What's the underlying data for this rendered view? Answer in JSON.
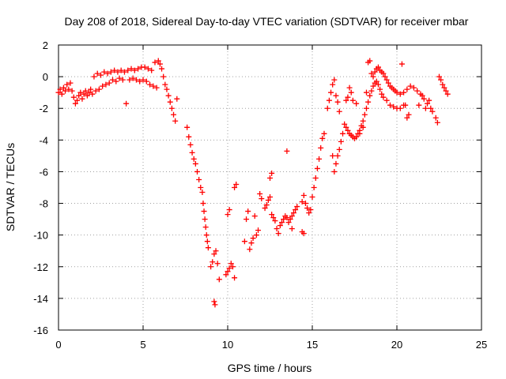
{
  "chart_data": {
    "type": "scatter",
    "title": "Day 208 of 2018, Sidereal Day-to-day VTEC variation (SDTVAR) for receiver mbar",
    "xlabel": "GPS time / hours",
    "ylabel": "SDTVAR / TECUs",
    "xlim": [
      0,
      25
    ],
    "ylim": [
      -16,
      2
    ],
    "xticks": [
      0,
      5,
      10,
      15,
      20,
      25
    ],
    "yticks": [
      -16,
      -14,
      -12,
      -10,
      -8,
      -6,
      -4,
      -2,
      0,
      2
    ],
    "grid": true,
    "marker": "+",
    "color": "#ff0000",
    "series": [
      {
        "name": "SDTVAR",
        "points": [
          [
            0.0,
            -1.0
          ],
          [
            0.1,
            -0.8
          ],
          [
            0.2,
            -1.1
          ],
          [
            0.3,
            -0.7
          ],
          [
            0.4,
            -0.9
          ],
          [
            0.5,
            -0.5
          ],
          [
            0.6,
            -0.8
          ],
          [
            0.7,
            -0.4
          ],
          [
            0.8,
            -0.9
          ],
          [
            0.9,
            -1.3
          ],
          [
            1.0,
            -1.7
          ],
          [
            1.1,
            -1.5
          ],
          [
            1.2,
            -1.2
          ],
          [
            1.3,
            -1.0
          ],
          [
            1.4,
            -1.4
          ],
          [
            1.5,
            -1.1
          ],
          [
            1.6,
            -0.9
          ],
          [
            1.7,
            -1.2
          ],
          [
            1.8,
            -1.0
          ],
          [
            1.9,
            -0.8
          ],
          [
            2.0,
            -1.1
          ],
          [
            2.2,
            -0.9
          ],
          [
            2.4,
            -0.8
          ],
          [
            2.6,
            -0.6
          ],
          [
            2.8,
            -0.5
          ],
          [
            3.0,
            -0.4
          ],
          [
            3.2,
            -0.2
          ],
          [
            3.4,
            -0.3
          ],
          [
            3.6,
            -0.1
          ],
          [
            3.8,
            -0.2
          ],
          [
            2.1,
            0.0
          ],
          [
            2.3,
            0.2
          ],
          [
            2.5,
            0.1
          ],
          [
            2.7,
            0.3
          ],
          [
            2.9,
            0.2
          ],
          [
            3.1,
            0.3
          ],
          [
            3.3,
            0.4
          ],
          [
            3.5,
            0.3
          ],
          [
            3.7,
            0.4
          ],
          [
            3.9,
            0.3
          ],
          [
            4.1,
            0.4
          ],
          [
            4.3,
            0.5
          ],
          [
            4.5,
            0.4
          ],
          [
            4.7,
            0.5
          ],
          [
            4.9,
            0.6
          ],
          [
            5.1,
            0.6
          ],
          [
            5.3,
            0.5
          ],
          [
            5.5,
            0.4
          ],
          [
            4.0,
            -1.7
          ],
          [
            4.2,
            -0.2
          ],
          [
            4.4,
            -0.1
          ],
          [
            4.6,
            -0.2
          ],
          [
            4.8,
            -0.3
          ],
          [
            5.0,
            -0.2
          ],
          [
            5.2,
            -0.3
          ],
          [
            5.4,
            -0.5
          ],
          [
            5.6,
            -0.6
          ],
          [
            5.8,
            -0.7
          ],
          [
            5.7,
            0.9
          ],
          [
            5.9,
            1.0
          ],
          [
            6.0,
            0.8
          ],
          [
            6.1,
            0.5
          ],
          [
            6.2,
            0.0
          ],
          [
            6.3,
            -0.5
          ],
          [
            6.4,
            -0.8
          ],
          [
            6.5,
            -1.2
          ],
          [
            6.6,
            -1.6
          ],
          [
            6.7,
            -2.0
          ],
          [
            6.8,
            -2.4
          ],
          [
            6.9,
            -2.8
          ],
          [
            7.0,
            -1.4
          ],
          [
            7.6,
            -3.2
          ],
          [
            7.7,
            -3.8
          ],
          [
            7.8,
            -4.3
          ],
          [
            7.9,
            -4.8
          ],
          [
            8.0,
            -5.2
          ],
          [
            8.1,
            -5.5
          ],
          [
            8.2,
            -6.0
          ],
          [
            8.3,
            -6.5
          ],
          [
            8.4,
            -7.0
          ],
          [
            8.5,
            -7.3
          ],
          [
            8.55,
            -8.0
          ],
          [
            8.6,
            -8.5
          ],
          [
            8.65,
            -9.0
          ],
          [
            8.7,
            -9.5
          ],
          [
            8.75,
            -10.0
          ],
          [
            8.8,
            -10.4
          ],
          [
            8.85,
            -10.8
          ],
          [
            9.0,
            -12.0
          ],
          [
            9.1,
            -11.7
          ],
          [
            9.2,
            -11.2
          ],
          [
            9.3,
            -11.0
          ],
          [
            9.4,
            -11.8
          ],
          [
            9.5,
            -12.8
          ],
          [
            9.2,
            -14.2
          ],
          [
            9.25,
            -14.4
          ],
          [
            9.9,
            -12.5
          ],
          [
            10.0,
            -12.3
          ],
          [
            10.1,
            -12.1
          ],
          [
            10.2,
            -11.8
          ],
          [
            10.3,
            -12.0
          ],
          [
            10.4,
            -12.7
          ],
          [
            10.0,
            -8.7
          ],
          [
            10.1,
            -8.4
          ],
          [
            10.4,
            -7.0
          ],
          [
            10.5,
            -6.8
          ],
          [
            11.0,
            -10.4
          ],
          [
            11.1,
            -9.0
          ],
          [
            11.2,
            -8.5
          ],
          [
            11.3,
            -10.9
          ],
          [
            11.4,
            -10.5
          ],
          [
            11.5,
            -10.2
          ],
          [
            11.6,
            -8.8
          ],
          [
            11.7,
            -10.0
          ],
          [
            11.8,
            -9.7
          ],
          [
            11.9,
            -7.4
          ],
          [
            12.0,
            -7.7
          ],
          [
            12.2,
            -8.3
          ],
          [
            12.3,
            -8.1
          ],
          [
            12.4,
            -7.8
          ],
          [
            12.5,
            -6.4
          ],
          [
            12.6,
            -6.1
          ],
          [
            12.5,
            -7.6
          ],
          [
            12.6,
            -8.7
          ],
          [
            12.7,
            -8.9
          ],
          [
            12.8,
            -9.1
          ],
          [
            12.9,
            -9.6
          ],
          [
            13.0,
            -9.9
          ],
          [
            13.1,
            -9.4
          ],
          [
            13.2,
            -9.2
          ],
          [
            13.3,
            -9.0
          ],
          [
            13.4,
            -8.8
          ],
          [
            13.5,
            -8.9
          ],
          [
            13.6,
            -9.2
          ],
          [
            13.7,
            -9.0
          ],
          [
            13.8,
            -8.8
          ],
          [
            13.9,
            -8.6
          ],
          [
            14.0,
            -8.4
          ],
          [
            14.1,
            -8.2
          ],
          [
            13.5,
            -4.7
          ],
          [
            13.8,
            -9.6
          ],
          [
            14.4,
            -9.8
          ],
          [
            14.5,
            -9.9
          ],
          [
            14.4,
            -7.9
          ],
          [
            14.5,
            -7.5
          ],
          [
            14.6,
            -8.0
          ],
          [
            14.7,
            -8.3
          ],
          [
            14.8,
            -8.6
          ],
          [
            14.9,
            -8.4
          ],
          [
            15.0,
            -7.6
          ],
          [
            15.1,
            -7.0
          ],
          [
            15.2,
            -6.4
          ],
          [
            15.3,
            -5.8
          ],
          [
            15.4,
            -5.2
          ],
          [
            15.5,
            -4.5
          ],
          [
            15.6,
            -3.9
          ],
          [
            15.7,
            -3.6
          ],
          [
            15.9,
            -2.0
          ],
          [
            16.0,
            -1.5
          ],
          [
            16.1,
            -1.0
          ],
          [
            16.2,
            -0.5
          ],
          [
            16.3,
            -0.2
          ],
          [
            16.4,
            -1.2
          ],
          [
            16.5,
            -1.6
          ],
          [
            16.6,
            -2.2
          ],
          [
            16.2,
            -5.0
          ],
          [
            16.3,
            -6.0
          ],
          [
            16.4,
            -5.5
          ],
          [
            16.5,
            -5.0
          ],
          [
            16.6,
            -4.6
          ],
          [
            16.7,
            -4.1
          ],
          [
            16.8,
            -3.6
          ],
          [
            16.9,
            -3.0
          ],
          [
            17.0,
            -1.5
          ],
          [
            17.1,
            -1.3
          ],
          [
            17.2,
            -0.7
          ],
          [
            17.3,
            -1.0
          ],
          [
            17.4,
            -1.5
          ],
          [
            17.0,
            -3.2
          ],
          [
            17.1,
            -3.4
          ],
          [
            17.2,
            -3.6
          ],
          [
            17.3,
            -3.7
          ],
          [
            17.4,
            -3.8
          ],
          [
            17.5,
            -3.9
          ],
          [
            17.6,
            -3.8
          ],
          [
            17.7,
            -3.6
          ],
          [
            17.8,
            -3.4
          ],
          [
            17.9,
            -3.1
          ],
          [
            18.0,
            -2.8
          ],
          [
            18.1,
            -2.4
          ],
          [
            18.2,
            -2.0
          ],
          [
            18.3,
            -1.6
          ],
          [
            18.4,
            -1.2
          ],
          [
            18.5,
            -0.9
          ],
          [
            18.6,
            -0.6
          ],
          [
            18.7,
            -0.4
          ],
          [
            18.8,
            -0.3
          ],
          [
            18.9,
            -0.5
          ],
          [
            19.0,
            -0.8
          ],
          [
            19.1,
            -1.1
          ],
          [
            19.2,
            -1.3
          ],
          [
            17.6,
            -1.7
          ],
          [
            17.8,
            -3.6
          ],
          [
            18.0,
            -3.2
          ],
          [
            18.2,
            -1.0
          ],
          [
            18.3,
            0.9
          ],
          [
            18.4,
            1.0
          ],
          [
            18.5,
            0.2
          ],
          [
            18.6,
            0.0
          ],
          [
            18.7,
            0.3
          ],
          [
            18.8,
            0.5
          ],
          [
            18.9,
            0.6
          ],
          [
            19.0,
            0.4
          ],
          [
            19.1,
            0.3
          ],
          [
            19.2,
            0.2
          ],
          [
            19.3,
            0.0
          ],
          [
            19.4,
            -0.2
          ],
          [
            19.5,
            -0.4
          ],
          [
            19.6,
            -0.6
          ],
          [
            19.7,
            -0.7
          ],
          [
            19.8,
            -0.8
          ],
          [
            19.9,
            -0.9
          ],
          [
            20.0,
            -1.0
          ],
          [
            20.2,
            -1.1
          ],
          [
            20.4,
            -1.0
          ],
          [
            20.6,
            -0.8
          ],
          [
            20.8,
            -0.6
          ],
          [
            21.0,
            -0.7
          ],
          [
            21.2,
            -0.9
          ],
          [
            21.4,
            -1.1
          ],
          [
            21.6,
            -1.4
          ],
          [
            21.8,
            -1.7
          ],
          [
            22.0,
            -2.0
          ],
          [
            19.4,
            -1.5
          ],
          [
            19.6,
            -1.8
          ],
          [
            19.8,
            -1.9
          ],
          [
            20.0,
            -2.0
          ],
          [
            20.2,
            -2.0
          ],
          [
            20.4,
            -1.8
          ],
          [
            20.3,
            0.8
          ],
          [
            20.5,
            -1.8
          ],
          [
            20.6,
            -2.6
          ],
          [
            20.7,
            -2.4
          ],
          [
            21.3,
            -1.8
          ],
          [
            21.5,
            -1.2
          ],
          [
            21.7,
            -2.0
          ],
          [
            21.9,
            -1.5
          ],
          [
            22.1,
            -2.2
          ],
          [
            22.3,
            -2.6
          ],
          [
            22.4,
            -2.9
          ],
          [
            22.5,
            0.0
          ],
          [
            22.6,
            -0.2
          ],
          [
            22.7,
            -0.5
          ],
          [
            22.8,
            -0.7
          ],
          [
            22.9,
            -0.9
          ],
          [
            23.0,
            -1.1
          ]
        ]
      }
    ]
  }
}
